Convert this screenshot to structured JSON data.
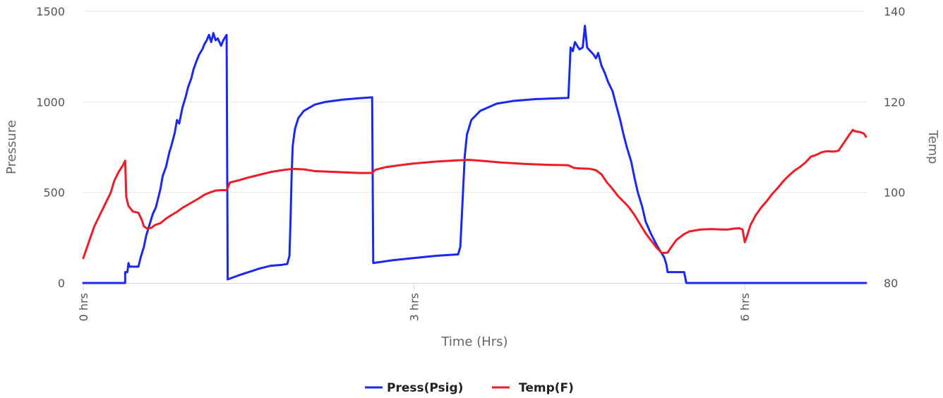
{
  "chart_data": {
    "type": "line",
    "xlabel": "Time (Hrs)",
    "ylabel_left": "Pressure",
    "ylabel_right": "Temp",
    "x_range": [
      0,
      7.1
    ],
    "x_ticks": [
      {
        "value": 0,
        "label": "0 hrs"
      },
      {
        "value": 3,
        "label": "3 hrs"
      },
      {
        "value": 6,
        "label": "6 hrs"
      }
    ],
    "ylim_left": [
      0,
      1500
    ],
    "yticks_left": [
      0,
      500,
      1000,
      1500
    ],
    "ylim_right": [
      80,
      140
    ],
    "yticks_right": [
      80,
      100,
      120,
      140
    ],
    "grid": true,
    "legend_position": "bottom-center",
    "series": [
      {
        "name": "Press(Psig)",
        "axis": "left",
        "color": "#1a28f0",
        "points": [
          [
            0,
            0
          ],
          [
            0.38,
            0
          ],
          [
            0.38,
            60
          ],
          [
            0.4,
            60
          ],
          [
            0.41,
            110
          ],
          [
            0.42,
            90
          ],
          [
            0.48,
            90
          ],
          [
            0.5,
            90
          ],
          [
            0.52,
            140
          ],
          [
            0.55,
            200
          ],
          [
            0.57,
            260
          ],
          [
            0.6,
            320
          ],
          [
            0.63,
            380
          ],
          [
            0.66,
            420
          ],
          [
            0.68,
            470
          ],
          [
            0.7,
            520
          ],
          [
            0.72,
            590
          ],
          [
            0.75,
            640
          ],
          [
            0.78,
            720
          ],
          [
            0.8,
            760
          ],
          [
            0.83,
            830
          ],
          [
            0.85,
            900
          ],
          [
            0.87,
            880
          ],
          [
            0.9,
            970
          ],
          [
            0.93,
            1030
          ],
          [
            0.95,
            1080
          ],
          [
            0.98,
            1130
          ],
          [
            1.0,
            1180
          ],
          [
            1.03,
            1230
          ],
          [
            1.05,
            1260
          ],
          [
            1.08,
            1290
          ],
          [
            1.1,
            1320
          ],
          [
            1.12,
            1340
          ],
          [
            1.14,
            1370
          ],
          [
            1.16,
            1330
          ],
          [
            1.18,
            1380
          ],
          [
            1.2,
            1340
          ],
          [
            1.22,
            1350
          ],
          [
            1.25,
            1310
          ],
          [
            1.27,
            1340
          ],
          [
            1.3,
            1370
          ],
          [
            1.31,
            20
          ],
          [
            1.4,
            40
          ],
          [
            1.5,
            60
          ],
          [
            1.6,
            80
          ],
          [
            1.7,
            95
          ],
          [
            1.8,
            100
          ],
          [
            1.85,
            105
          ],
          [
            1.87,
            150
          ],
          [
            1.88,
            350
          ],
          [
            1.89,
            600
          ],
          [
            1.9,
            760
          ],
          [
            1.92,
            850
          ],
          [
            1.95,
            910
          ],
          [
            2.0,
            950
          ],
          [
            2.1,
            985
          ],
          [
            2.2,
            1000
          ],
          [
            2.35,
            1012
          ],
          [
            2.5,
            1020
          ],
          [
            2.62,
            1025
          ],
          [
            2.63,
            110
          ],
          [
            2.8,
            125
          ],
          [
            3.0,
            138
          ],
          [
            3.2,
            150
          ],
          [
            3.4,
            158
          ],
          [
            3.42,
            200
          ],
          [
            3.44,
            450
          ],
          [
            3.46,
            700
          ],
          [
            3.48,
            820
          ],
          [
            3.52,
            900
          ],
          [
            3.6,
            950
          ],
          [
            3.75,
            990
          ],
          [
            3.9,
            1005
          ],
          [
            4.1,
            1015
          ],
          [
            4.3,
            1020
          ],
          [
            4.4,
            1022
          ],
          [
            4.42,
            1300
          ],
          [
            4.44,
            1280
          ],
          [
            4.46,
            1330
          ],
          [
            4.5,
            1290
          ],
          [
            4.53,
            1300
          ],
          [
            4.55,
            1420
          ],
          [
            4.57,
            1300
          ],
          [
            4.6,
            1280
          ],
          [
            4.63,
            1260
          ],
          [
            4.65,
            1240
          ],
          [
            4.67,
            1270
          ],
          [
            4.7,
            1200
          ],
          [
            4.73,
            1160
          ],
          [
            4.76,
            1110
          ],
          [
            4.8,
            1060
          ],
          [
            4.83,
            990
          ],
          [
            4.87,
            900
          ],
          [
            4.9,
            820
          ],
          [
            4.93,
            750
          ],
          [
            4.97,
            670
          ],
          [
            5.0,
            580
          ],
          [
            5.03,
            500
          ],
          [
            5.07,
            420
          ],
          [
            5.1,
            340
          ],
          [
            5.15,
            270
          ],
          [
            5.2,
            210
          ],
          [
            5.25,
            160
          ],
          [
            5.27,
            140
          ],
          [
            5.29,
            100
          ],
          [
            5.3,
            60
          ],
          [
            5.45,
            60
          ],
          [
            5.47,
            0
          ],
          [
            7.1,
            0
          ]
        ]
      },
      {
        "name": "Temp(F)",
        "axis": "right",
        "color": "#ee1c25",
        "points": [
          [
            0,
            85.5
          ],
          [
            0.05,
            89
          ],
          [
            0.1,
            92.5
          ],
          [
            0.15,
            95
          ],
          [
            0.2,
            97.5
          ],
          [
            0.25,
            100
          ],
          [
            0.28,
            102.5
          ],
          [
            0.32,
            104.5
          ],
          [
            0.36,
            106
          ],
          [
            0.38,
            107
          ],
          [
            0.39,
            99
          ],
          [
            0.41,
            97
          ],
          [
            0.45,
            95.8
          ],
          [
            0.5,
            95.5
          ],
          [
            0.53,
            94
          ],
          [
            0.55,
            92.5
          ],
          [
            0.58,
            92
          ],
          [
            0.62,
            92.2
          ],
          [
            0.65,
            92.8
          ],
          [
            0.7,
            93.2
          ],
          [
            0.75,
            94.2
          ],
          [
            0.8,
            95
          ],
          [
            0.85,
            95.7
          ],
          [
            0.9,
            96.6
          ],
          [
            0.95,
            97.3
          ],
          [
            1.0,
            98
          ],
          [
            1.05,
            98.7
          ],
          [
            1.1,
            99.5
          ],
          [
            1.15,
            100
          ],
          [
            1.2,
            100.4
          ],
          [
            1.25,
            100.5
          ],
          [
            1.3,
            100.5
          ],
          [
            1.31,
            101
          ],
          [
            1.33,
            102.2
          ],
          [
            1.4,
            102.6
          ],
          [
            1.5,
            103.3
          ],
          [
            1.6,
            103.9
          ],
          [
            1.7,
            104.5
          ],
          [
            1.8,
            104.9
          ],
          [
            1.9,
            105.2
          ],
          [
            2.0,
            105.1
          ],
          [
            2.1,
            104.7
          ],
          [
            2.3,
            104.5
          ],
          [
            2.5,
            104.3
          ],
          [
            2.62,
            104.3
          ],
          [
            2.65,
            105
          ],
          [
            2.75,
            105.6
          ],
          [
            2.9,
            106.1
          ],
          [
            3.0,
            106.4
          ],
          [
            3.2,
            106.8
          ],
          [
            3.4,
            107.1
          ],
          [
            3.5,
            107.2
          ],
          [
            3.6,
            107
          ],
          [
            3.8,
            106.6
          ],
          [
            4.0,
            106.3
          ],
          [
            4.2,
            106.1
          ],
          [
            4.4,
            106
          ],
          [
            4.45,
            105.4
          ],
          [
            4.5,
            105.3
          ],
          [
            4.6,
            105.2
          ],
          [
            4.65,
            104.9
          ],
          [
            4.7,
            104
          ],
          [
            4.75,
            102.2
          ],
          [
            4.8,
            100.8
          ],
          [
            4.85,
            99.2
          ],
          [
            4.9,
            98
          ],
          [
            4.95,
            96.7
          ],
          [
            5.0,
            95
          ],
          [
            5.05,
            93
          ],
          [
            5.1,
            91
          ],
          [
            5.15,
            89.4
          ],
          [
            5.2,
            87.8
          ],
          [
            5.25,
            86.6
          ],
          [
            5.3,
            86.7
          ],
          [
            5.33,
            87.8
          ],
          [
            5.38,
            89.5
          ],
          [
            5.45,
            90.8
          ],
          [
            5.5,
            91.4
          ],
          [
            5.6,
            91.8
          ],
          [
            5.7,
            91.9
          ],
          [
            5.8,
            91.8
          ],
          [
            5.85,
            91.8
          ],
          [
            5.9,
            92
          ],
          [
            5.95,
            92.1
          ],
          [
            5.98,
            91.8
          ],
          [
            6.0,
            89
          ],
          [
            6.02,
            90.3
          ],
          [
            6.05,
            92.7
          ],
          [
            6.1,
            95
          ],
          [
            6.15,
            96.7
          ],
          [
            6.2,
            98.1
          ],
          [
            6.25,
            99.7
          ],
          [
            6.3,
            101
          ],
          [
            6.35,
            102.5
          ],
          [
            6.4,
            103.7
          ],
          [
            6.45,
            104.8
          ],
          [
            6.5,
            105.6
          ],
          [
            6.55,
            106.6
          ],
          [
            6.6,
            107.9
          ],
          [
            6.65,
            108.3
          ],
          [
            6.7,
            108.9
          ],
          [
            6.75,
            109.1
          ],
          [
            6.8,
            109
          ],
          [
            6.85,
            109.2
          ],
          [
            6.9,
            111
          ],
          [
            6.95,
            112.8
          ],
          [
            6.98,
            113.8
          ],
          [
            7.0,
            113.5
          ],
          [
            7.05,
            113.3
          ],
          [
            7.08,
            113
          ],
          [
            7.1,
            112.3
          ]
        ]
      }
    ]
  }
}
